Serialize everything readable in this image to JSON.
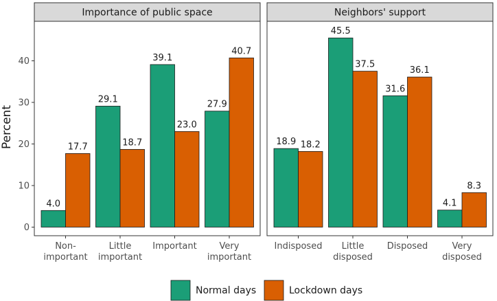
{
  "chart_data": {
    "type": "bar",
    "ylabel": "Percent",
    "ylim": [
      0,
      47.7
    ],
    "yticks": [
      0,
      10,
      20,
      30,
      40
    ],
    "series_names": [
      "Normal days",
      "Lockdown days"
    ],
    "colors": [
      "#1b9e77",
      "#d95f02"
    ],
    "legend_position": "bottom",
    "panels": [
      {
        "title": "Importance of public space",
        "categories": [
          [
            "Non-",
            "important"
          ],
          [
            "Little",
            "important"
          ],
          [
            "Important"
          ],
          [
            "Very",
            "important"
          ]
        ],
        "series": [
          {
            "name": "Normal days",
            "values": [
              4.0,
              29.1,
              39.1,
              27.9
            ]
          },
          {
            "name": "Lockdown days",
            "values": [
              17.7,
              18.7,
              23.0,
              40.7
            ]
          }
        ]
      },
      {
        "title": "Neighbors' support",
        "categories": [
          [
            "Indisposed"
          ],
          [
            "Little",
            "disposed"
          ],
          [
            "Disposed"
          ],
          [
            "Very",
            "disposed"
          ]
        ],
        "series": [
          {
            "name": "Normal days",
            "values": [
              18.9,
              45.5,
              31.6,
              4.1
            ]
          },
          {
            "name": "Lockdown days",
            "values": [
              18.2,
              37.5,
              36.1,
              8.3
            ]
          }
        ]
      }
    ]
  }
}
